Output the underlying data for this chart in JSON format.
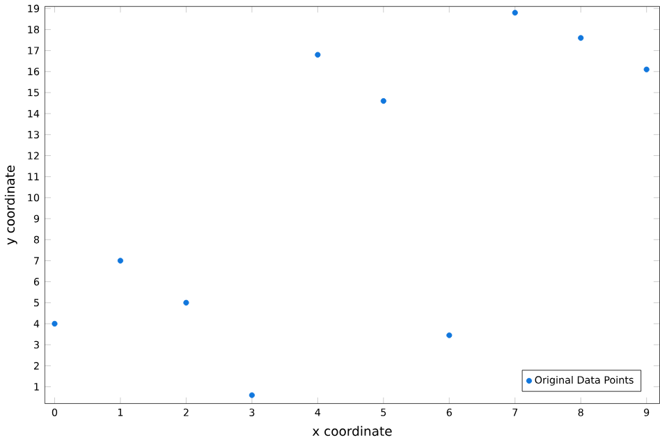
{
  "chart_data": {
    "type": "scatter",
    "xlabel": "x coordinate",
    "ylabel": "y coordinate",
    "x": [
      0,
      1,
      2,
      3,
      4,
      5,
      6,
      7,
      8,
      9
    ],
    "series": [
      {
        "name": "Original Data Points",
        "color": "#1177dd",
        "values": [
          4.0,
          7.0,
          5.0,
          0.6,
          16.8,
          14.6,
          3.45,
          18.8,
          17.6,
          16.1
        ]
      }
    ],
    "xlim": [
      -0.15,
      9.2
    ],
    "ylim": [
      0.2,
      19.1
    ],
    "xticks": [
      0,
      1,
      2,
      3,
      4,
      5,
      6,
      7,
      8,
      9
    ],
    "yticks": [
      1,
      2,
      3,
      4,
      5,
      6,
      7,
      8,
      9,
      10,
      11,
      12,
      13,
      14,
      15,
      16,
      17,
      18,
      19
    ],
    "legend": "bottom right",
    "marker": "circle",
    "grid": false
  }
}
